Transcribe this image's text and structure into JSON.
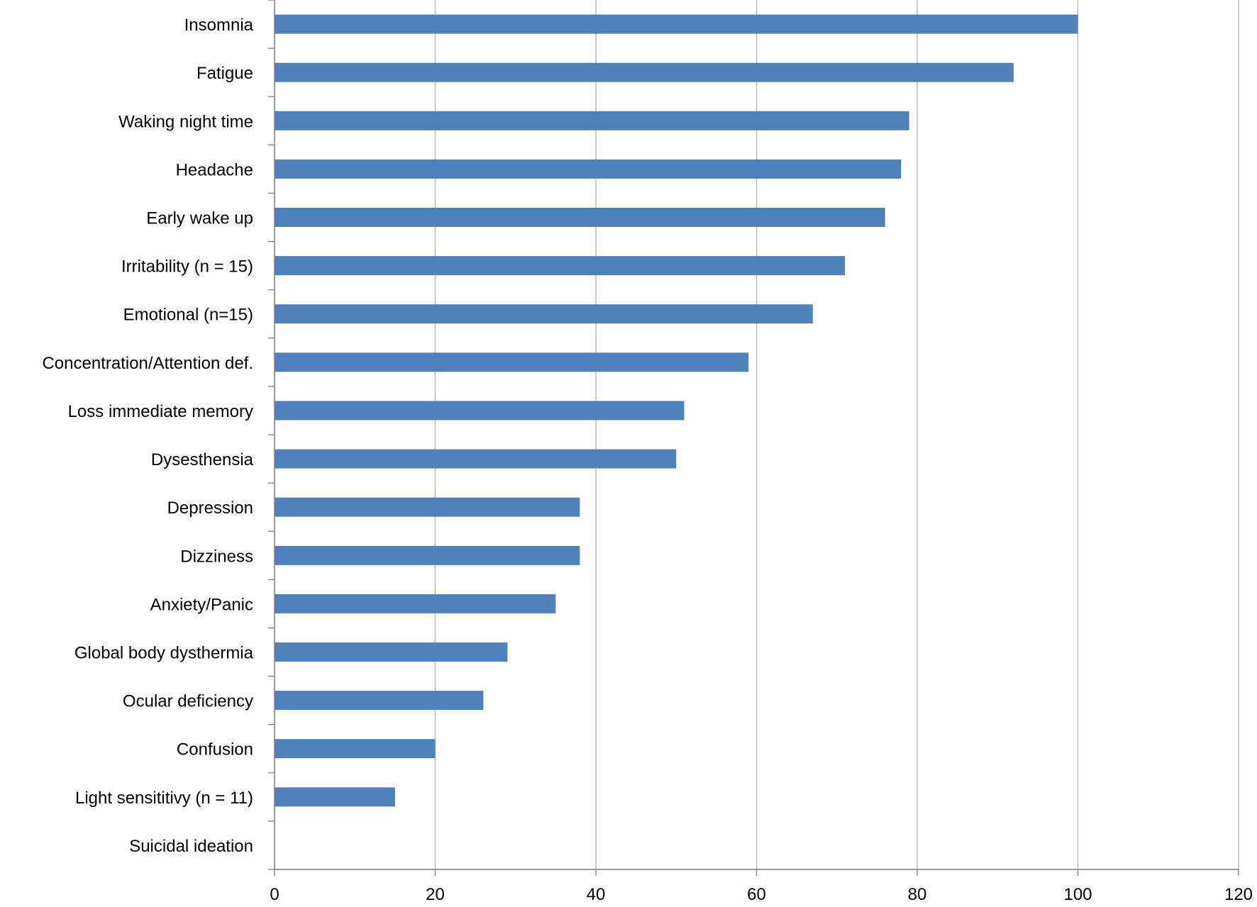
{
  "chart_data": {
    "type": "bar",
    "orientation": "horizontal",
    "title": "",
    "xlabel": "",
    "ylabel": "",
    "categories": [
      "Insomnia",
      "Fatigue",
      "Waking night time",
      "Headache",
      "Early wake up",
      "Irritability (n = 15)",
      "Emotional (n=15)",
      "Concentration/Attention def.",
      "Loss immediate memory",
      "Dysesthensia",
      "Depression",
      "Dizziness",
      "Anxiety/Panic",
      "Global body dysthermia",
      "Ocular deficiency",
      "Confusion",
      "Light sensititivy (n = 11)",
      "Suicidal ideation"
    ],
    "values": [
      100,
      92,
      79,
      78,
      76,
      71,
      67,
      59,
      51,
      50,
      38,
      38,
      35,
      29,
      26,
      20,
      15,
      0
    ],
    "xlim": [
      0,
      120
    ],
    "xticks": [
      "0",
      "20",
      "40",
      "60",
      "80",
      "100",
      "120"
    ],
    "grid": "vertical",
    "legend": "none",
    "bar_color": "#4f81bd",
    "grid_color": "#b3b3b3",
    "axis_color": "#7f7f7f"
  }
}
